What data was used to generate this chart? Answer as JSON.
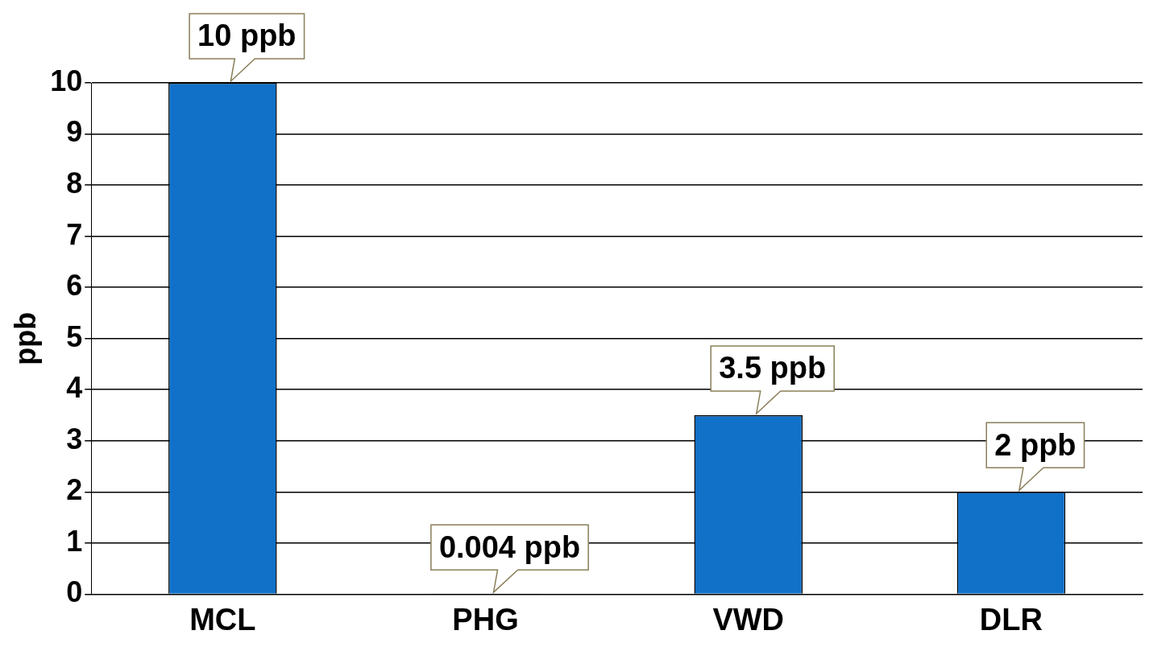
{
  "chart_data": {
    "type": "bar",
    "ylabel": "ppb",
    "categories": [
      "MCL",
      "PHG",
      "VWD",
      "DLR"
    ],
    "values": [
      10,
      0.004,
      3.5,
      2
    ],
    "value_labels": [
      "10 ppb",
      "0.004 ppb",
      "3.5 ppb",
      "2 ppb"
    ],
    "color": "#1170c8",
    "ylim": [
      0,
      10
    ],
    "yticks": [
      0,
      1,
      2,
      3,
      4,
      5,
      6,
      7,
      8,
      9,
      10
    ],
    "grid": "y",
    "legend": false
  }
}
